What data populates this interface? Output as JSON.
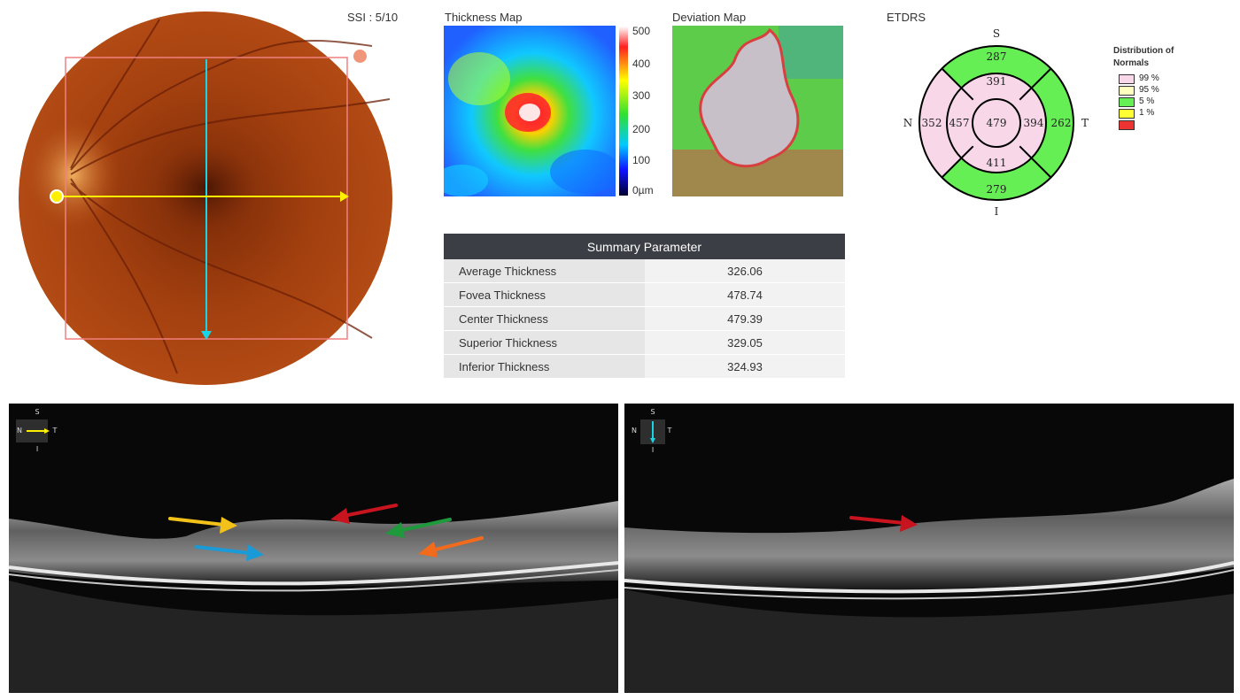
{
  "ssi": "SSI : 5/10",
  "maps": {
    "thickness_title": "Thickness Map",
    "deviation_title": "Deviation Map",
    "scale_ticks": [
      "500",
      "400",
      "300",
      "200",
      "100",
      "0µm"
    ]
  },
  "etdrs": {
    "title": "ETDRS",
    "orientation": {
      "top": "S",
      "bottom": "I",
      "left": "N",
      "right": "T"
    },
    "center": "479",
    "inner": {
      "superior": "391",
      "inferior": "411",
      "nasal": "457",
      "temporal": "394"
    },
    "outer": {
      "superior": "287",
      "inferior": "279",
      "nasal": "352",
      "temporal": "262"
    },
    "colors": {
      "pink": "#f7d7e8",
      "green": "#66ee55",
      "light_yellow": "#ffffc0",
      "yellow": "#ffff33",
      "red": "#ee3333"
    }
  },
  "legend": {
    "title": "Distribution of Normals",
    "items": [
      {
        "label": "99 %",
        "color": "#f7d7e8"
      },
      {
        "label": "95 %",
        "color": "#ffffc0"
      },
      {
        "label": "5 %",
        "color": "#66ee55"
      },
      {
        "label": "1 %",
        "color": "#ee3333"
      }
    ]
  },
  "summary": {
    "header": "Summary Parameter",
    "rows": [
      {
        "label": "Average Thickness",
        "value": "326.06"
      },
      {
        "label": "Fovea Thickness",
        "value": "478.74"
      },
      {
        "label": "Center Thickness",
        "value": "479.39"
      },
      {
        "label": "Superior Thickness",
        "value": "329.05"
      },
      {
        "label": "Inferior Thickness",
        "value": "324.93"
      }
    ]
  },
  "scans": {
    "left_orientation": {
      "top": "S",
      "bottom": "I",
      "left": "N",
      "right": "T"
    },
    "right_orientation": {
      "top": "S",
      "bottom": "I",
      "left": "N",
      "right": "T"
    },
    "arrow_colors": {
      "yellow": "#f2c21b",
      "red": "#c8141e",
      "green": "#1e9a3c",
      "blue": "#1a9ad6",
      "orange": "#f26a1b",
      "cyan": "#19d4e6"
    }
  }
}
